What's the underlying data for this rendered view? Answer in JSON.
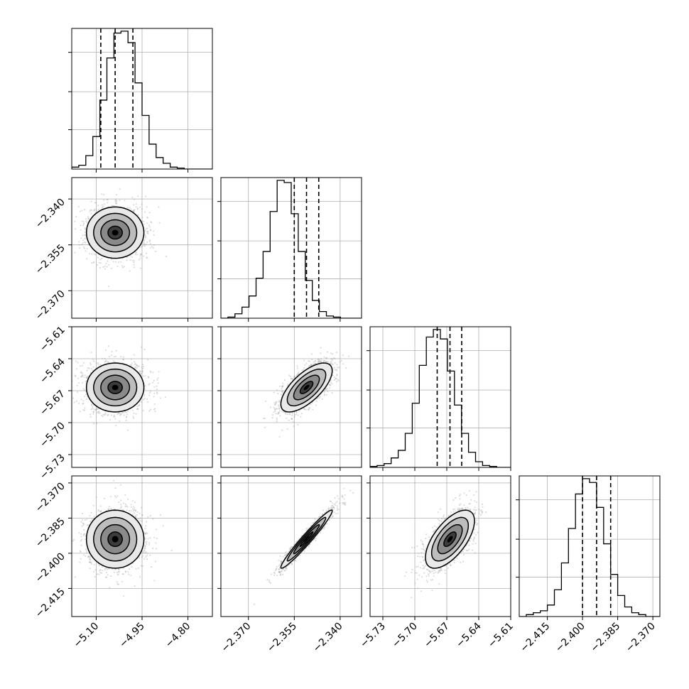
{
  "chart_data": {
    "type": "scatter",
    "kind": "corner-plot",
    "title": "",
    "grid": true,
    "parameters": [
      {
        "index": 0,
        "range": [
          -5.18,
          -4.72
        ],
        "ticks": [
          -5.1,
          -4.95,
          -4.8
        ],
        "tick_labels": [
          "−5.10",
          "−4.95",
          "−4.80"
        ],
        "median": -5.038,
        "q16": -5.085,
        "q84": -4.98,
        "std": 0.047
      },
      {
        "index": 1,
        "range": [
          -2.379,
          -2.333
        ],
        "ticks": [
          -2.37,
          -2.355,
          -2.34
        ],
        "tick_labels": [
          "−2.370",
          "−2.355",
          "−2.340"
        ],
        "median": -2.351,
        "q16": -2.355,
        "q84": -2.347,
        "std": 0.0042
      },
      {
        "index": 2,
        "range": [
          -5.742,
          -5.61
        ],
        "ticks": [
          -5.73,
          -5.7,
          -5.67,
          -5.64,
          -5.61
        ],
        "tick_labels": [
          "−5.73",
          "−5.70",
          "−5.67",
          "−5.64",
          "−5.61"
        ],
        "median": -5.667,
        "q16": -5.679,
        "q84": -5.656,
        "std": 0.0115
      },
      {
        "index": 3,
        "range": [
          -2.427,
          -2.367
        ],
        "ticks": [
          -2.415,
          -2.4,
          -2.385,
          -2.37
        ],
        "tick_labels": [
          "−2.415",
          "−2.400",
          "−2.385",
          "−2.370"
        ],
        "median": -2.394,
        "q16": -2.4,
        "q84": -2.388,
        "std": 0.0062
      }
    ],
    "histograms": [
      {
        "param": 0,
        "edges_range": [
          -5.18,
          -4.72
        ],
        "bins": 20,
        "counts": [
          1,
          2,
          7,
          17,
          36,
          58,
          71,
          72,
          66,
          45,
          28,
          13,
          6,
          3,
          1,
          0.5,
          0,
          0,
          0,
          0
        ]
      },
      {
        "param": 1,
        "edges_range": [
          -2.379,
          -2.333
        ],
        "bins": 20,
        "counts": [
          0,
          0.5,
          2,
          5,
          10,
          18,
          30,
          48,
          62,
          61,
          47,
          30,
          17,
          8,
          3,
          1,
          0.5,
          0,
          0,
          0
        ]
      },
      {
        "param": 2,
        "edges_range": [
          -5.742,
          -5.61
        ],
        "bins": 20,
        "counts": [
          0.5,
          1,
          2,
          5,
          9,
          18,
          34,
          54,
          69,
          73,
          68,
          51,
          33,
          18,
          8,
          3,
          1,
          0.5,
          0,
          0
        ]
      },
      {
        "param": 3,
        "edges_range": [
          -2.427,
          -2.367
        ],
        "bins": 20,
        "counts": [
          0,
          1,
          2,
          3,
          6,
          14,
          28,
          46,
          64,
          72,
          70,
          57,
          38,
          22,
          11,
          5,
          2,
          1,
          0,
          0
        ]
      }
    ],
    "correlations": {
      "1_0": 0.0,
      "2_0": 0.0,
      "2_1": 0.68,
      "3_0": 0.0,
      "3_1": 0.97,
      "3_2": 0.63
    },
    "quantiles": [
      0.16,
      0.5,
      0.84
    ],
    "contour_levels_sigma": [
      0.5,
      1.0,
      1.5,
      2.0
    ]
  }
}
